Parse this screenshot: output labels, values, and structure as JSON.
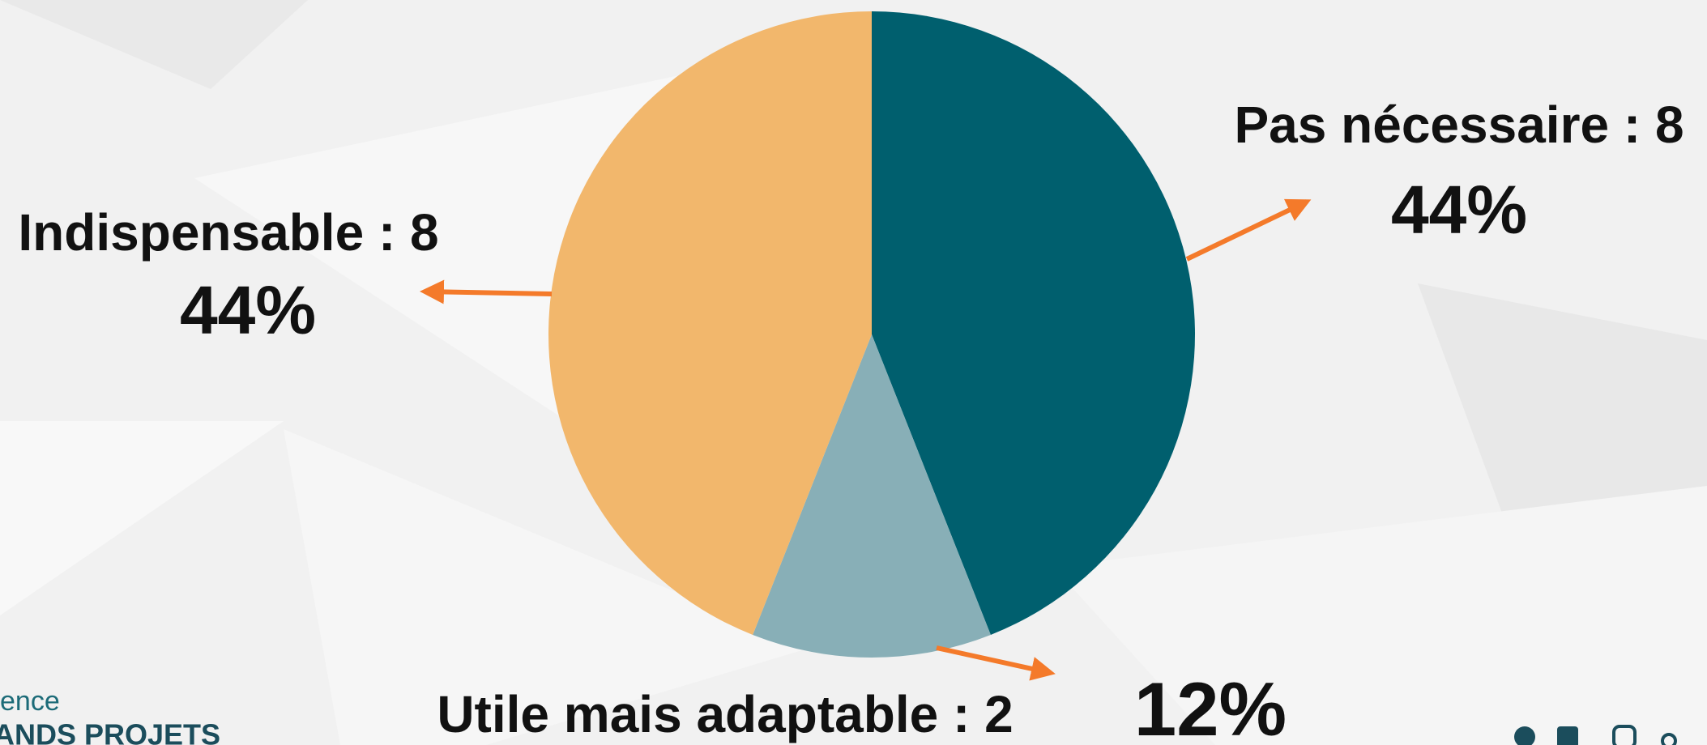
{
  "chart_data": {
    "type": "pie",
    "categories": [
      "Pas nécessaire : 8",
      "Utile mais adaptable : 2",
      "Indispensable : 8"
    ],
    "values": [
      44,
      12,
      44
    ],
    "value_labels": [
      "44%",
      "12%",
      "44%"
    ],
    "colors": [
      "#005f6e",
      "#88afb7",
      "#f2b76c"
    ]
  },
  "footer": {
    "logo_line1": "ence",
    "logo_line2": "ANDS PROJETS"
  }
}
